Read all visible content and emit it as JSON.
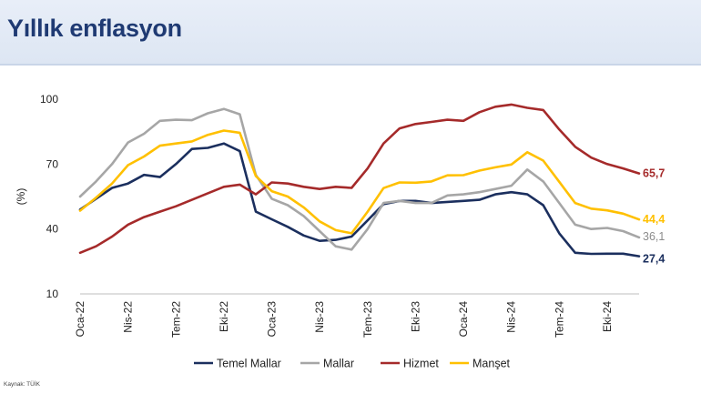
{
  "page": {
    "title": "Yıllık enflasyon",
    "source": "Kaynak: TÜİK"
  },
  "chart_data": {
    "type": "line",
    "title": "",
    "ylabel": "(%)",
    "ylim": [
      10,
      100
    ],
    "yticks": [
      10,
      40,
      70,
      100
    ],
    "x": [
      "Oca-22",
      "Şub-22",
      "Mar-22",
      "Nis-22",
      "May-22",
      "Haz-22",
      "Tem-22",
      "Ağu-22",
      "Eyl-22",
      "Eki-22",
      "Kas-22",
      "Ara-22",
      "Oca-23",
      "Şub-23",
      "Mar-23",
      "Nis-23",
      "May-23",
      "Haz-23",
      "Tem-23",
      "Ağu-23",
      "Eyl-23",
      "Eki-23",
      "Kas-23",
      "Ara-23",
      "Oca-24",
      "Şub-24",
      "Mar-24",
      "Nis-24",
      "May-24",
      "Haz-24",
      "Tem-24",
      "Ağu-24",
      "Eyl-24",
      "Eki-24",
      "Kas-24",
      "Ara-24"
    ],
    "xtick_labels": [
      "Oca-22",
      "Nis-22",
      "Tem-22",
      "Eki-22",
      "Oca-23",
      "Nis-23",
      "Tem-23",
      "Eki-23",
      "Oca-24",
      "Nis-24",
      "Tem-24",
      "Eki-24"
    ],
    "xtick_indices": [
      0,
      3,
      6,
      9,
      12,
      15,
      18,
      21,
      24,
      27,
      30,
      33
    ],
    "legend_position": "bottom",
    "grid": false,
    "series": [
      {
        "name": "Temel Mallar",
        "color": "#1b2f5e",
        "end_label": "27,4",
        "values": [
          49,
          54,
          59,
          61,
          65,
          64,
          70,
          77,
          77.5,
          79.5,
          76,
          48,
          44.5,
          41,
          37,
          34.5,
          35,
          36.5,
          44,
          51.5,
          53,
          53,
          52,
          52.5,
          53,
          53.5,
          56,
          57,
          56,
          51,
          38,
          29,
          28.5,
          28.6,
          28.6,
          27.4
        ]
      },
      {
        "name": "Mallar",
        "color": "#a6a6a6",
        "end_label": "36,1",
        "values": [
          55,
          62,
          70,
          80,
          84,
          90,
          90.5,
          90.3,
          93.5,
          95.5,
          93,
          65,
          54,
          51,
          46,
          39,
          32,
          30.5,
          40,
          52,
          53,
          52,
          52,
          55.5,
          56,
          57,
          58.5,
          60,
          67.5,
          62,
          52,
          42,
          40,
          40.5,
          39,
          36.1
        ]
      },
      {
        "name": "Hizmet",
        "color": "#a52a2a",
        "end_label": "65,7",
        "values": [
          29,
          32,
          36.5,
          42,
          45.5,
          48,
          50.5,
          53.5,
          56.5,
          59.5,
          60.5,
          56,
          61.5,
          61,
          59.5,
          58.5,
          59.5,
          59,
          68,
          79.5,
          86.5,
          88.5,
          89.5,
          90.5,
          90,
          94,
          96.5,
          97.5,
          96,
          95,
          86,
          78,
          73,
          70,
          68,
          65.7
        ]
      },
      {
        "name": "Manşet",
        "color": "#ffc000",
        "end_label": "44,4",
        "values": [
          48.5,
          54.5,
          61,
          69.5,
          73.5,
          78.5,
          79.5,
          80.5,
          83.5,
          85.5,
          84.5,
          64.5,
          57.5,
          55,
          50,
          43.5,
          39.5,
          38,
          48,
          58.9,
          61.5,
          61.4,
          62,
          64.8,
          64.9,
          67,
          68.5,
          69.8,
          75.5,
          71.6,
          61.8,
          52,
          49.4,
          48.6,
          47.1,
          44.4
        ]
      }
    ]
  }
}
